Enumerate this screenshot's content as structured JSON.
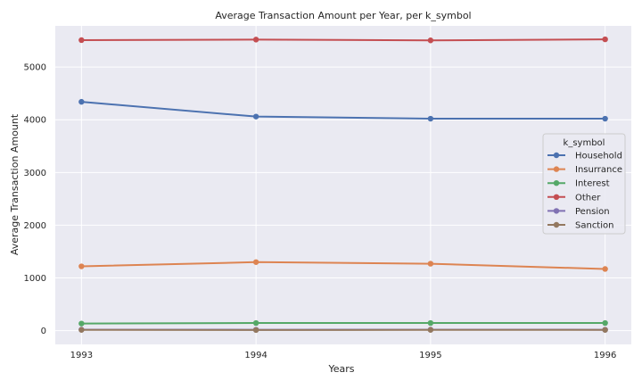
{
  "chart_data": {
    "type": "line",
    "title": "Average Transaction Amount per Year, per k_symbol",
    "xlabel": "Years",
    "ylabel": "Average Transaction Amount",
    "x": [
      1993,
      1994,
      1995,
      1996
    ],
    "x_ticks": [
      "1993",
      "1994",
      "1995",
      "1996"
    ],
    "y_ticks": [
      0,
      1000,
      2000,
      3000,
      4000,
      5000
    ],
    "ylim": [
      -260,
      5780
    ],
    "xlim": [
      1992.85,
      1996.15
    ],
    "grid": true,
    "legend": {
      "title": "k_symbol",
      "placement": "center-right"
    },
    "series": [
      {
        "name": "Household",
        "color": "#4c72b0",
        "values": [
          4340,
          4060,
          4020,
          4020
        ]
      },
      {
        "name": "Insurrance",
        "color": "#dd8452",
        "values": [
          1220,
          1300,
          1270,
          1170
        ]
      },
      {
        "name": "Interest",
        "color": "#55a868",
        "values": [
          135,
          145,
          145,
          145
        ]
      },
      {
        "name": "Other",
        "color": "#c44e52",
        "values": [
          5510,
          5520,
          5505,
          5525
        ]
      },
      {
        "name": "Pension",
        "color": "#8172b3",
        "values": [
          20,
          18,
          20,
          18
        ]
      },
      {
        "name": "Sanction",
        "color": "#937860",
        "values": [
          15,
          12,
          15,
          15
        ]
      }
    ]
  }
}
